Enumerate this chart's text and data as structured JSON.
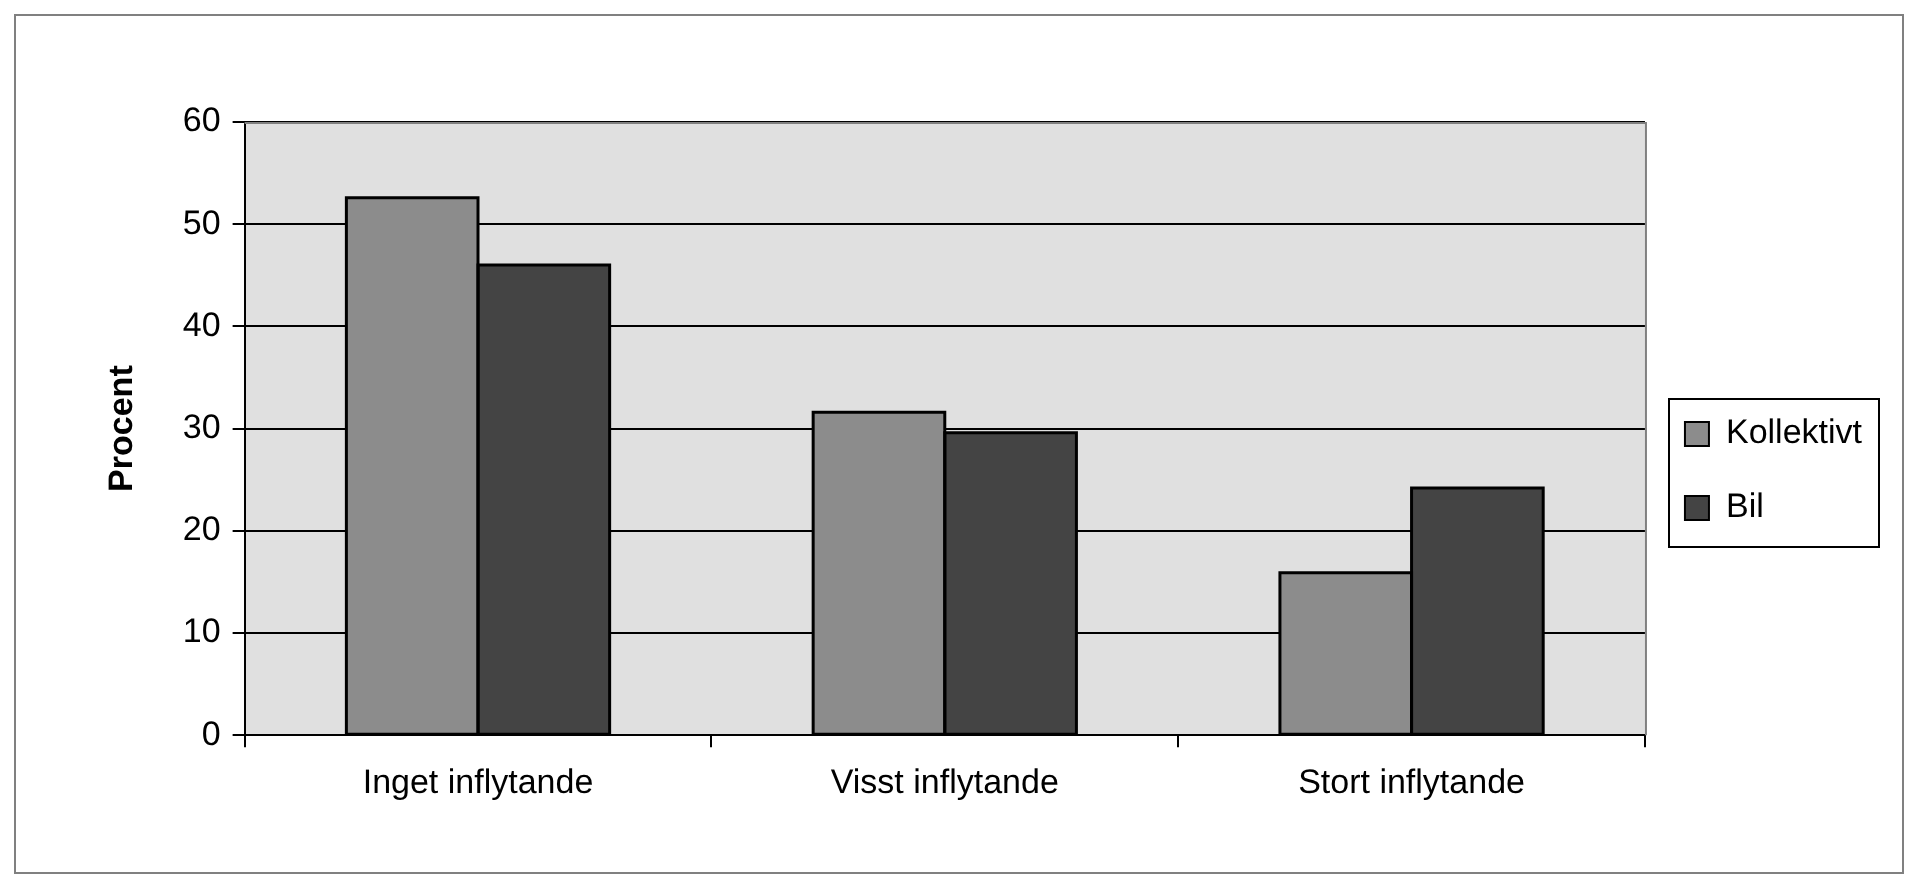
{
  "chart_data": {
    "type": "bar",
    "categories": [
      "Inget inflytande",
      "Visst inflytande",
      "Stort inflytande"
    ],
    "series": [
      {
        "name": "Kollektivt",
        "color": "#8c8c8c",
        "values": [
          52.6,
          31.6,
          15.9
        ]
      },
      {
        "name": "Bil",
        "color": "#444444",
        "values": [
          46.0,
          29.6,
          24.2
        ]
      }
    ],
    "ylabel": "Procent",
    "ylim": [
      0,
      60
    ],
    "yticks": [
      0,
      10,
      20,
      30,
      40,
      50,
      60
    ],
    "grid": "y",
    "legend": "right"
  }
}
